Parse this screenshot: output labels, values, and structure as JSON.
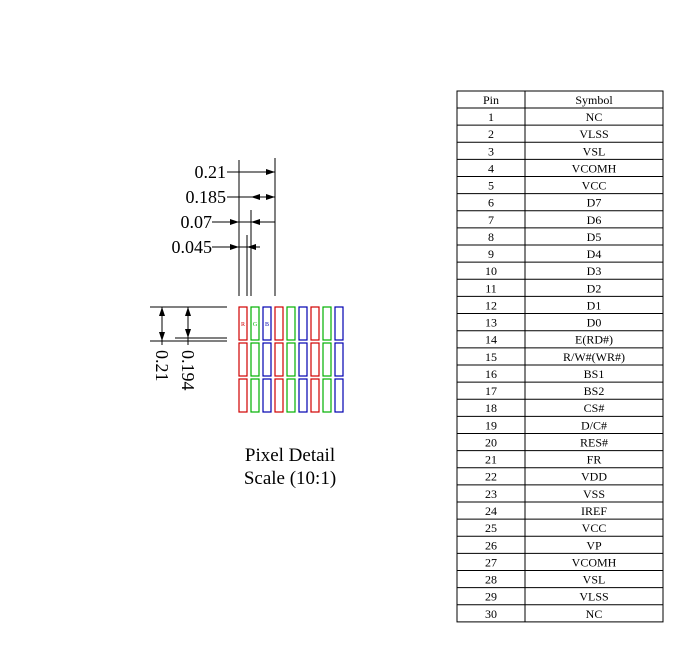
{
  "pixel_detail": {
    "horizontal_dimensions": [
      "0.21",
      "0.185",
      "0.07",
      "0.045"
    ],
    "vertical_dimensions": [
      "0.21",
      "0.194"
    ],
    "subpixel_letters": [
      "R",
      "G",
      "B"
    ],
    "caption": [
      "Pixel Detail",
      "Scale (10:1)"
    ]
  },
  "table": {
    "header": [
      "Pin",
      "Symbol"
    ],
    "rows": [
      [
        1,
        "NC"
      ],
      [
        2,
        "VLSS"
      ],
      [
        3,
        "VSL"
      ],
      [
        4,
        "VCOMH"
      ],
      [
        5,
        "VCC"
      ],
      [
        6,
        "D7"
      ],
      [
        7,
        "D6"
      ],
      [
        8,
        "D5"
      ],
      [
        9,
        "D4"
      ],
      [
        10,
        "D3"
      ],
      [
        11,
        "D2"
      ],
      [
        12,
        "D1"
      ],
      [
        13,
        "D0"
      ],
      [
        14,
        "E(RD#)"
      ],
      [
        15,
        "R/W#(WR#)"
      ],
      [
        16,
        "BS1"
      ],
      [
        17,
        "BS2"
      ],
      [
        18,
        "CS#"
      ],
      [
        19,
        "D/C#"
      ],
      [
        20,
        "RES#"
      ],
      [
        21,
        "FR"
      ],
      [
        22,
        "VDD"
      ],
      [
        23,
        "VSS"
      ],
      [
        24,
        "IREF"
      ],
      [
        25,
        "VCC"
      ],
      [
        26,
        "VP"
      ],
      [
        27,
        "VCOMH"
      ],
      [
        28,
        "VSL"
      ],
      [
        29,
        "VLSS"
      ],
      [
        30,
        "NC"
      ]
    ]
  }
}
